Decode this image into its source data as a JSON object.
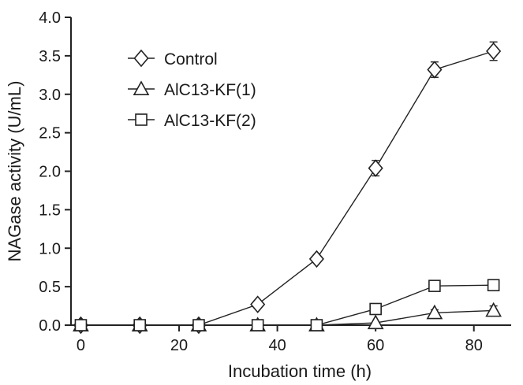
{
  "chart_data": {
    "type": "line",
    "title": "",
    "xlabel": "Incubation time (h)",
    "ylabel": "NAGase activity (U/mL)",
    "xlim": [
      -2,
      90
    ],
    "ylim": [
      0,
      4.0
    ],
    "xticks": [
      0,
      20,
      40,
      60,
      80
    ],
    "xtick_labels": [
      "0",
      "20",
      "40",
      "60",
      "80"
    ],
    "yticks": [
      0,
      0.5,
      1.0,
      1.5,
      2.0,
      2.5,
      3.0,
      3.5,
      4.0
    ],
    "ytick_labels": [
      "0.0",
      "0.5",
      "1.0",
      "1.5",
      "2.0",
      "2.5",
      "3.0",
      "3.5",
      "4.0"
    ],
    "grid": false,
    "legend_position": "top-left",
    "series": [
      {
        "name": "Control",
        "marker": "diamond",
        "x": [
          0,
          12,
          24,
          36,
          48,
          60,
          72,
          84
        ],
        "y": [
          0,
          0,
          0,
          0.27,
          0.86,
          2.04,
          3.32,
          3.56
        ],
        "error": [
          0,
          0,
          0,
          0,
          0,
          0.1,
          0.1,
          0.12
        ]
      },
      {
        "name": "AlC13-KF(1)",
        "marker": "triangle",
        "x": [
          0,
          12,
          24,
          36,
          48,
          60,
          72,
          84
        ],
        "y": [
          0,
          0,
          0,
          0,
          0,
          0.03,
          0.16,
          0.19
        ],
        "error": [
          0,
          0,
          0,
          0,
          0,
          0,
          0.04,
          0.06
        ]
      },
      {
        "name": "AlC13-KF(2)",
        "marker": "square",
        "x": [
          0,
          12,
          24,
          36,
          48,
          60,
          72,
          84
        ],
        "y": [
          0,
          0,
          0,
          0,
          0,
          0.21,
          0.51,
          0.52
        ],
        "error": [
          0,
          0,
          0,
          0,
          0,
          0,
          0.06,
          0.04
        ]
      }
    ],
    "colors": {
      "line": "#222222",
      "marker_fill": "#ffffff",
      "axis": "#222222"
    }
  }
}
